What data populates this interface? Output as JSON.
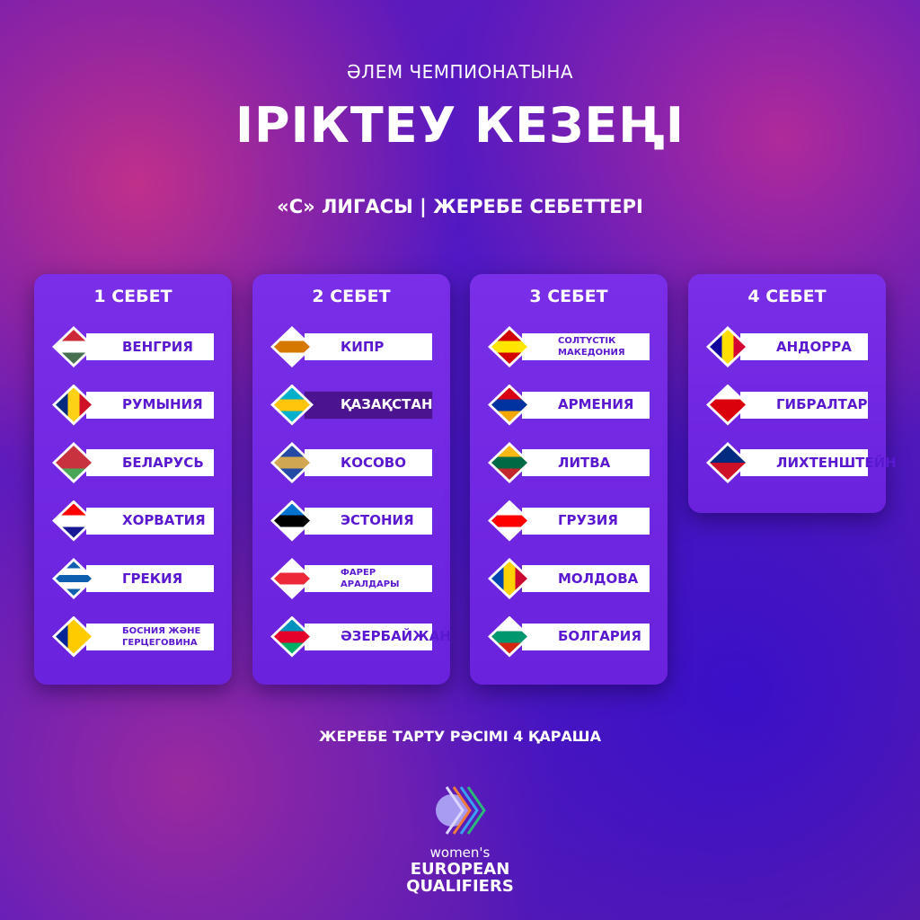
{
  "header": {
    "supertitle": "ӘЛЕМ ЧЕМПИОНАТЫНА",
    "title": "ІРІКТЕУ КЕЗЕҢІ",
    "subtitle": "«С» ЛИГАСЫ | ЖЕРЕБЕ СЕБЕТТЕРІ"
  },
  "pots": [
    {
      "title": "1 СЕБЕТ",
      "teams": [
        {
          "name": "ВЕНГРИЯ",
          "flag": {
            "dir": "h",
            "colors": [
              "#ce2939",
              "#ffffff",
              "#477050"
            ]
          }
        },
        {
          "name": "РУМЫНИЯ",
          "flag": {
            "dir": "v",
            "colors": [
              "#002b7f",
              "#fcd116",
              "#ce1126"
            ]
          }
        },
        {
          "name": "БЕЛАРУСЬ",
          "flag": {
            "dir": "h",
            "colors": [
              "#c8313e",
              "#c8313e",
              "#4aa657"
            ]
          }
        },
        {
          "name": "ХОРВАТИЯ",
          "flag": {
            "dir": "h",
            "colors": [
              "#ff0000",
              "#ffffff",
              "#171796"
            ]
          }
        },
        {
          "name": "ГРЕКИЯ",
          "flag": {
            "dir": "h",
            "colors": [
              "#0d5eaf",
              "#ffffff",
              "#0d5eaf",
              "#ffffff",
              "#0d5eaf"
            ]
          }
        },
        {
          "name": "БОСНИЯ ЖӘНЕ ГЕРЦЕГОВИНА",
          "small": true,
          "flag": {
            "dir": "v",
            "colors": [
              "#002395",
              "#fecb00",
              "#fecb00"
            ]
          }
        }
      ]
    },
    {
      "title": "2 СЕБЕТ",
      "teams": [
        {
          "name": "КИПР",
          "flag": {
            "dir": "h",
            "colors": [
              "#ffffff",
              "#d57800",
              "#ffffff"
            ]
          }
        },
        {
          "name": "ҚАЗАҚСТАН",
          "highlight": true,
          "flag": {
            "dir": "h",
            "colors": [
              "#00afca",
              "#fec50c",
              "#00afca"
            ]
          }
        },
        {
          "name": "КОСОВО",
          "flag": {
            "dir": "h",
            "colors": [
              "#244aa5",
              "#d0a650",
              "#244aa5"
            ]
          }
        },
        {
          "name": "ЭСТОНИЯ",
          "flag": {
            "dir": "h",
            "colors": [
              "#0072ce",
              "#000000",
              "#ffffff"
            ]
          }
        },
        {
          "name": "ФАРЕР АРАЛДАРЫ",
          "small": true,
          "flag": {
            "dir": "h",
            "colors": [
              "#ffffff",
              "#ed2939",
              "#ffffff"
            ]
          }
        },
        {
          "name": "ӘЗЕРБАЙЖАН",
          "flag": {
            "dir": "h",
            "colors": [
              "#0092bc",
              "#e4002b",
              "#00af66"
            ]
          }
        }
      ]
    },
    {
      "title": "3 СЕБЕТ",
      "teams": [
        {
          "name": "СОЛТҮСТІК МАКЕДОНИЯ",
          "small": true,
          "flag": {
            "dir": "h",
            "colors": [
              "#d20000",
              "#ffe600",
              "#d20000"
            ]
          }
        },
        {
          "name": "АРМЕНИЯ",
          "flag": {
            "dir": "h",
            "colors": [
              "#d90012",
              "#0033a0",
              "#f2a800"
            ]
          }
        },
        {
          "name": "ЛИТВА",
          "flag": {
            "dir": "h",
            "colors": [
              "#fdb913",
              "#006a44",
              "#c1272d"
            ]
          }
        },
        {
          "name": "ГРУЗИЯ",
          "flag": {
            "dir": "h",
            "colors": [
              "#ffffff",
              "#ff0000",
              "#ffffff"
            ]
          }
        },
        {
          "name": "МОЛДОВА",
          "flag": {
            "dir": "v",
            "colors": [
              "#0046ae",
              "#ffd200",
              "#cc092f"
            ]
          }
        },
        {
          "name": "БОЛГАРИЯ",
          "flag": {
            "dir": "h",
            "colors": [
              "#ffffff",
              "#00966e",
              "#d62612"
            ]
          }
        }
      ]
    },
    {
      "title": "4 СЕБЕТ",
      "teams": [
        {
          "name": "АНДОРРА",
          "flag": {
            "dir": "v",
            "colors": [
              "#10069f",
              "#fedd00",
              "#d50032"
            ]
          }
        },
        {
          "name": "ГИБРАЛТАР",
          "flag": {
            "dir": "h",
            "colors": [
              "#ffffff",
              "#da000c",
              "#da000c"
            ]
          }
        },
        {
          "name": "ЛИХТЕНШТЕЙН",
          "flag": {
            "dir": "h",
            "colors": [
              "#002b7f",
              "#ce1126"
            ]
          }
        }
      ]
    }
  ],
  "footer": {
    "draw_date": "ЖЕРЕБЕ ТАРТУ РӘСІМІ 4 ҚАРАША"
  },
  "logo": {
    "line1": "women's",
    "line2": "EUROPEAN",
    "line3": "QUALIFIERS"
  }
}
